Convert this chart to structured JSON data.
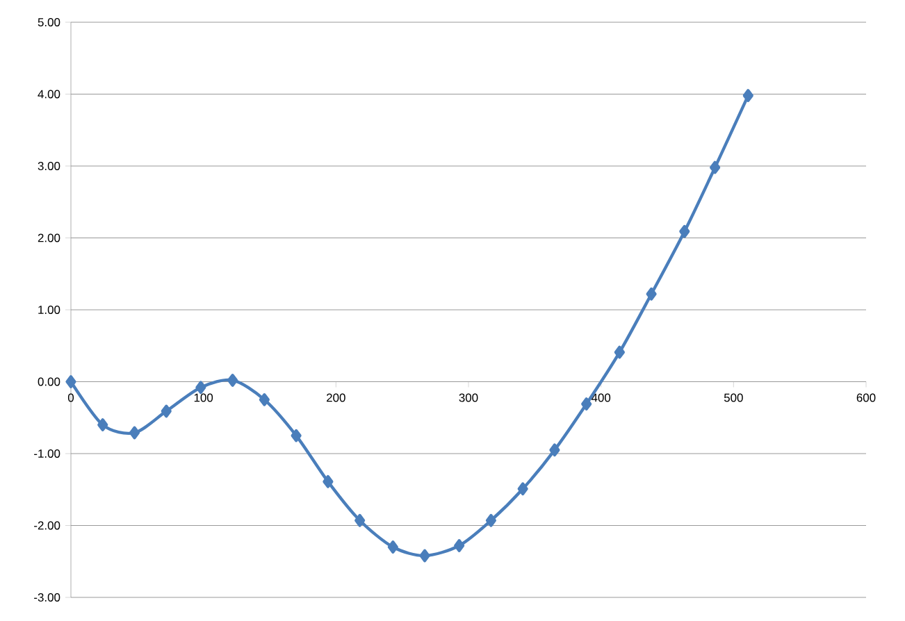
{
  "chart_data": {
    "type": "line",
    "x": [
      0,
      24,
      48,
      72,
      98,
      122,
      146,
      170,
      194,
      218,
      243,
      267,
      293,
      317,
      341,
      365,
      389,
      414,
      438,
      463,
      486,
      511
    ],
    "series": [
      {
        "color": "#4a7ebb",
        "values": [
          0,
          -0.6,
          -0.71,
          -0.41,
          -0.08,
          0.02,
          -0.25,
          -0.75,
          -1.39,
          -1.93,
          -2.3,
          -2.42,
          -2.28,
          -1.93,
          -1.49,
          -0.95,
          -0.31,
          0.41,
          1.22,
          2.09,
          2.98,
          3.98
        ]
      }
    ],
    "xlim": [
      0,
      600
    ],
    "xticks": [
      0,
      100,
      200,
      300,
      400,
      500,
      600
    ],
    "ylim": [
      -3,
      5
    ],
    "yticks": [
      {
        "value": -3,
        "label": "-3.00"
      },
      {
        "value": -2,
        "label": "-2.00"
      },
      {
        "value": -1,
        "label": "-1.00"
      },
      {
        "value": 0,
        "label": "0.00"
      },
      {
        "value": 1,
        "label": "1.00"
      },
      {
        "value": 2,
        "label": "2.00"
      },
      {
        "value": 3,
        "label": "3.00"
      },
      {
        "value": 4,
        "label": "4.00"
      },
      {
        "value": 5,
        "label": "5.00"
      }
    ],
    "grid": "y",
    "marker": "diamond",
    "line_style": "solid"
  }
}
